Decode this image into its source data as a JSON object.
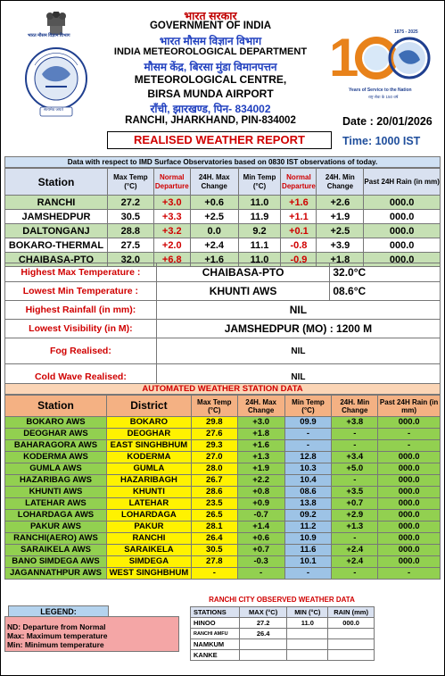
{
  "header": {
    "hindi_gov": "भारत सरकार",
    "gov": "GOVERNMENT OF INDIA",
    "hindi_imd": "भारत मौसम विज्ञान विभाग",
    "imd": "INDIA METEOROLOGICAL DEPARTMENT",
    "hindi_centre": "मौसम केंद्र, बिरसा मुंडा विमानपत्तन",
    "centre": "METEOROLOGICAL CENTRE,",
    "airport": "BIRSA MUNDA AIRPORT",
    "hindi_addr": "राँची, झारखण्ड, पिन- 834002",
    "addr": "RANCHI, JHARKHAND, PIN-834002",
    "date": "Date : 20/01/2026",
    "time": "Time: 1000 IST",
    "report_title": "REALISED WEATHER REPORT",
    "left_logo_text": "भारत मौसम विज्ञान विभाग",
    "left_logo_motto": "सत्यमेव जयते",
    "logo_150": "150",
    "logo_years": "1875 - 2025",
    "logo_tagline": "Years of Service to the Nation",
    "logo_hindi": "राष्ट्र सेवा के 150 वर्ष"
  },
  "obs_note": "Data with respect to IMD Surface Observatories based on 0830 IST observations of today.",
  "main_table": {
    "headers": [
      "Station",
      "Max Temp (°C)",
      "Normal Departure",
      "24H. Max Change",
      "Min Temp (°C)",
      "Normal Departure",
      "24H. Min Change",
      "Past 24H Rain (in mm)"
    ],
    "rows": [
      {
        "station": "RANCHI",
        "max": "27.2",
        "maxdep": "+3.0",
        "maxchg": "+0.6",
        "min": "11.0",
        "mindep": "+1.6",
        "minchg": "+2.6",
        "rain": "000.0"
      },
      {
        "station": "JAMSHEDPUR",
        "max": "30.5",
        "maxdep": "+3.3",
        "maxchg": "+2.5",
        "min": "11.9",
        "mindep": "+1.1",
        "minchg": "+1.9",
        "rain": "000.0"
      },
      {
        "station": "DALTONGANJ",
        "max": "28.8",
        "maxdep": "+3.2",
        "maxchg": "0.0",
        "min": "9.2",
        "mindep": "+0.1",
        "minchg": "+2.5",
        "rain": "000.0"
      },
      {
        "station": "BOKARO-THERMAL",
        "max": "27.5",
        "maxdep": "+2.0",
        "maxchg": "+2.4",
        "min": "11.1",
        "mindep": "-0.8",
        "minchg": "+3.9",
        "rain": "000.0"
      },
      {
        "station": "CHAIBASA-PTO",
        "max": "32.0",
        "maxdep": "+6.8",
        "maxchg": "+1.6",
        "min": "11.0",
        "mindep": "-0.9",
        "minchg": "+1.8",
        "rain": "000.0"
      }
    ]
  },
  "summary": {
    "hmax_label": "Highest Max Temperature :",
    "hmax_station": "CHAIBASA-PTO",
    "hmax_value": "32.0°C",
    "lmin_label": "Lowest Min Temperature :",
    "lmin_station": "KHUNTI AWS",
    "lmin_value": "08.6°C",
    "hrain_label": "Highest Rainfall (in mm):",
    "hrain_value": "NIL",
    "lvis_label": "Lowest Visibility (in M):",
    "lvis_value": "JAMSHEDPUR (MO) : 1200 M",
    "fog_label": "Fog Realised:",
    "fog_value": "NIL",
    "cold_label": "Cold Wave Realised:",
    "cold_value": "NIL"
  },
  "aws": {
    "title": "AUTOMATED WEATHER STATION DATA",
    "headers": [
      "Station",
      "District",
      "Max Temp (°C)",
      "24H. Max Change",
      "Min Temp (°C)",
      "24H. Min Change",
      "Past 24H Rain (in mm)"
    ],
    "rows": [
      {
        "station": "BOKARO AWS",
        "district": "BOKARO",
        "max": "29.8",
        "maxchg": "+3.0",
        "min": "09.9",
        "minchg": "+3.8",
        "rain": "000.0"
      },
      {
        "station": "DEOGHAR AWS",
        "district": "DEOGHAR",
        "max": "27.6",
        "maxchg": "+1.8",
        "min": "-",
        "minchg": "-",
        "rain": "-"
      },
      {
        "station": "BAHARAGORA AWS",
        "district": "EAST SINGHBHUM",
        "max": "29.3",
        "maxchg": "+1.6",
        "min": "-",
        "minchg": "-",
        "rain": "-"
      },
      {
        "station": "KODERMA AWS",
        "district": "KODERMA",
        "max": "27.0",
        "maxchg": "+1.3",
        "min": "12.8",
        "minchg": "+3.4",
        "rain": "000.0"
      },
      {
        "station": "GUMLA AWS",
        "district": "GUMLA",
        "max": "28.0",
        "maxchg": "+1.9",
        "min": "10.3",
        "minchg": "+5.0",
        "rain": "000.0"
      },
      {
        "station": "HAZARIBAG AWS",
        "district": "HAZARIBAGH",
        "max": "26.7",
        "maxchg": "+2.2",
        "min": "10.4",
        "minchg": "-",
        "rain": "000.0"
      },
      {
        "station": "KHUNTI AWS",
        "district": "KHUNTI",
        "max": "28.6",
        "maxchg": "+0.8",
        "min": "08.6",
        "minchg": "+3.5",
        "rain": "000.0"
      },
      {
        "station": "LATEHAR AWS",
        "district": "LATEHAR",
        "max": "23.5",
        "maxchg": "+0.9",
        "min": "13.8",
        "minchg": "+0.7",
        "rain": "000.0"
      },
      {
        "station": "LOHARDAGA AWS",
        "district": "LOHARDAGA",
        "max": "26.5",
        "maxchg": "-0.7",
        "min": "09.2",
        "minchg": "+2.9",
        "rain": "000.0"
      },
      {
        "station": "PAKUR AWS",
        "district": "PAKUR",
        "max": "28.1",
        "maxchg": "+1.4",
        "min": "11.2",
        "minchg": "+1.3",
        "rain": "000.0"
      },
      {
        "station": "RANCHI(AERO) AWS",
        "district": "RANCHI",
        "max": "26.4",
        "maxchg": "+0.6",
        "min": "10.9",
        "minchg": "-",
        "rain": "000.0"
      },
      {
        "station": "SARAIKELA AWS",
        "district": "SARAIKELA",
        "max": "30.5",
        "maxchg": "+0.7",
        "min": "11.6",
        "minchg": "+2.4",
        "rain": "000.0"
      },
      {
        "station": "BANO SIMDEGA AWS",
        "district": "SIMDEGA",
        "max": "27.8",
        "maxchg": "-0.3",
        "min": "10.1",
        "minchg": "+2.4",
        "rain": "000.0"
      },
      {
        "station": "JAGANNATHPUR AWS",
        "district": "WEST SINGHBHUM",
        "max": "-",
        "maxchg": "-",
        "min": "-",
        "minchg": "-",
        "rain": "-"
      }
    ]
  },
  "legend": {
    "title": "LEGEND:",
    "l1": "ND: Departure from Normal",
    "l2": "Max: Maximum temperature",
    "l3": "Min: Minimum temperature"
  },
  "ranchi_city": {
    "title": "RANCHI CITY OBSERVED WEATHER DATA",
    "headers": [
      "STATIONS",
      "MAX (°C)",
      "MIN (°C)",
      "RAIN (mm)"
    ],
    "rows": [
      {
        "station": "HINOO",
        "max": "27.2",
        "min": "11.0",
        "rain": "000.0"
      },
      {
        "station": "RANCHI AMFU",
        "max": "26.4",
        "min": "",
        "rain": ""
      },
      {
        "station": "NAMKUM",
        "max": "",
        "min": "",
        "rain": ""
      },
      {
        "station": "KANKE",
        "max": "",
        "min": "",
        "rain": ""
      }
    ]
  }
}
